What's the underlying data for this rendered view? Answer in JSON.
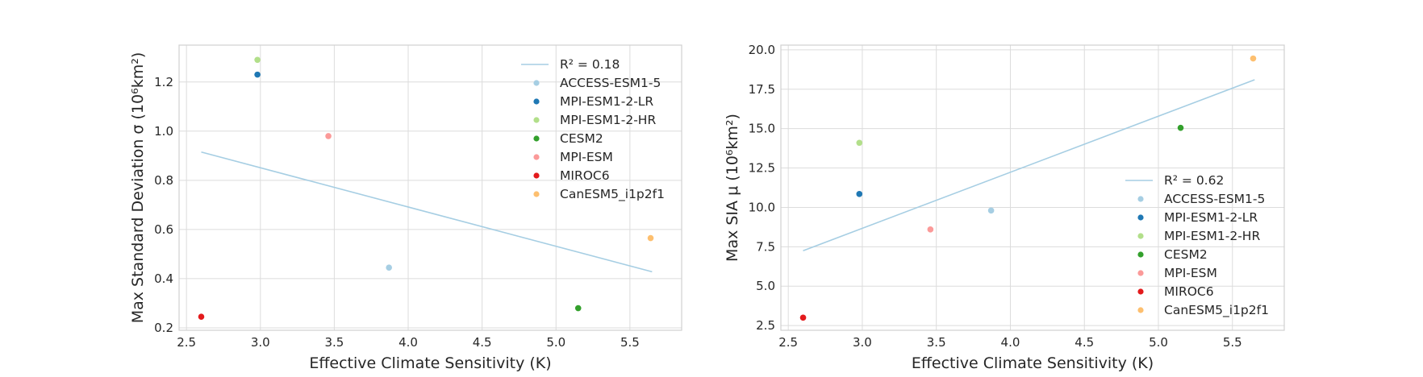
{
  "chart_data": [
    {
      "type": "scatter",
      "xlabel": "Effective Climate Sensitivity (K)",
      "ylabel": "Max Standard Deviation σ (10⁶km²)",
      "xlim": [
        2.45,
        5.85
      ],
      "ylim": [
        0.19,
        1.35
      ],
      "xticks": [
        2.5,
        3.0,
        3.5,
        4.0,
        4.5,
        5.0,
        5.5
      ],
      "xtick_labels": [
        "2.5",
        "3.0",
        "3.5",
        "4.0",
        "4.5",
        "5.0",
        "5.5"
      ],
      "yticks": [
        0.2,
        0.4,
        0.6,
        0.8,
        1.0,
        1.2
      ],
      "ytick_labels": [
        "0.2",
        "0.4",
        "0.6",
        "0.8",
        "1.0",
        "1.2"
      ],
      "grid": true,
      "legend_position": "top-right",
      "fit": {
        "label": "R² = 0.18",
        "r2": 0.18,
        "x": [
          2.6,
          5.65
        ],
        "y": [
          0.915,
          0.428
        ],
        "color": "#a6cee3"
      },
      "series": [
        {
          "name": "ACCESS-ESM1-5",
          "color": "#a6cee3",
          "x": 3.87,
          "y": 0.445
        },
        {
          "name": "MPI-ESM1-2-LR",
          "color": "#1f78b4",
          "x": 2.98,
          "y": 1.23
        },
        {
          "name": "MPI-ESM1-2-HR",
          "color": "#b2df8a",
          "x": 2.98,
          "y": 1.29
        },
        {
          "name": "CESM2",
          "color": "#33a02c",
          "x": 5.15,
          "y": 0.28
        },
        {
          "name": "MPI-ESM",
          "color": "#fb9a99",
          "x": 3.46,
          "y": 0.98
        },
        {
          "name": "MIROC6",
          "color": "#e31a1c",
          "x": 2.6,
          "y": 0.245
        },
        {
          "name": "CanESM5_i1p2f1",
          "color": "#fdbf6f",
          "x": 5.64,
          "y": 0.565
        }
      ]
    },
    {
      "type": "scatter",
      "xlabel": "Effective Climate Sensitivity (K)",
      "ylabel": "Max SIA μ (10⁶km²)",
      "xlim": [
        2.45,
        5.85
      ],
      "ylim": [
        2.2,
        20.3
      ],
      "xticks": [
        2.5,
        3.0,
        3.5,
        4.0,
        4.5,
        5.0,
        5.5
      ],
      "xtick_labels": [
        "2.5",
        "3.0",
        "3.5",
        "4.0",
        "4.5",
        "5.0",
        "5.5"
      ],
      "yticks": [
        2.5,
        5.0,
        7.5,
        10.0,
        12.5,
        15.0,
        17.5,
        20.0
      ],
      "ytick_labels": [
        "2.5",
        "5.0",
        "7.5",
        "10.0",
        "12.5",
        "15.0",
        "17.5",
        "20.0"
      ],
      "grid": true,
      "legend_position": "lower-right",
      "fit": {
        "label": "R² = 0.62",
        "r2": 0.62,
        "x": [
          2.6,
          5.65
        ],
        "y": [
          7.25,
          18.1
        ],
        "color": "#a6cee3"
      },
      "series": [
        {
          "name": "ACCESS-ESM1-5",
          "color": "#a6cee3",
          "x": 3.87,
          "y": 9.8
        },
        {
          "name": "MPI-ESM1-2-LR",
          "color": "#1f78b4",
          "x": 2.98,
          "y": 10.85
        },
        {
          "name": "MPI-ESM1-2-HR",
          "color": "#b2df8a",
          "x": 2.98,
          "y": 14.1
        },
        {
          "name": "CESM2",
          "color": "#33a02c",
          "x": 5.15,
          "y": 15.05
        },
        {
          "name": "MPI-ESM",
          "color": "#fb9a99",
          "x": 3.46,
          "y": 8.6
        },
        {
          "name": "MIROC6",
          "color": "#e31a1c",
          "x": 2.6,
          "y": 3.0
        },
        {
          "name": "CanESM5_i1p2f1",
          "color": "#fdbf6f",
          "x": 5.64,
          "y": 19.45
        }
      ]
    }
  ]
}
